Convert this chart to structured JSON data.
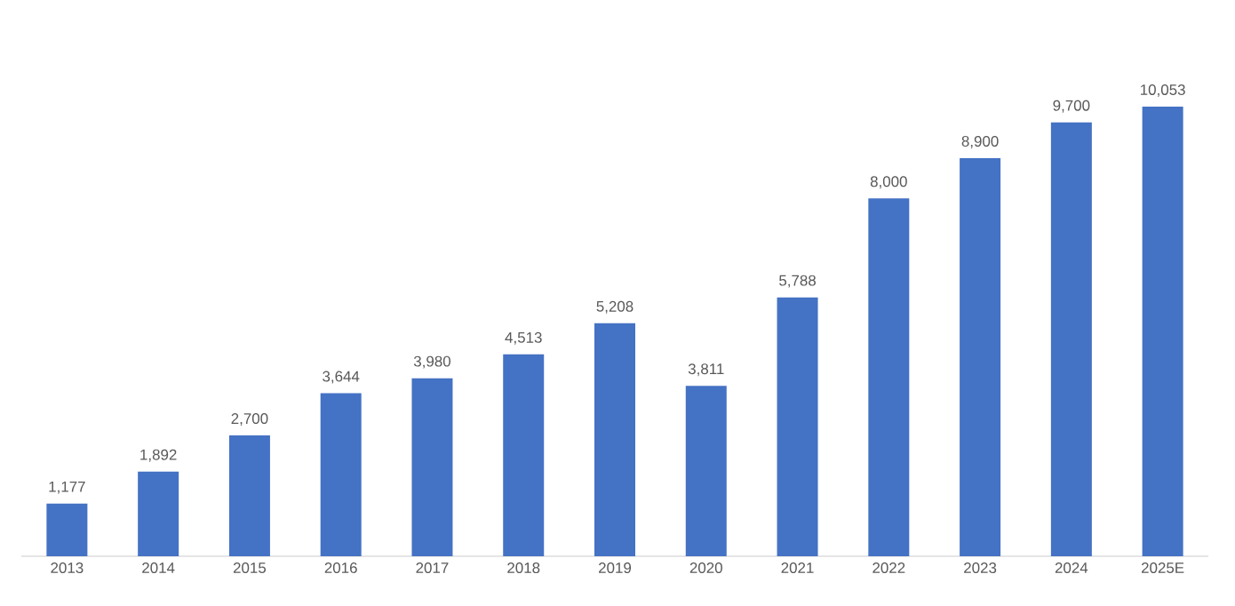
{
  "chart_data": {
    "type": "bar",
    "categories": [
      "2013",
      "2014",
      "2015",
      "2016",
      "2017",
      "2018",
      "2019",
      "2020",
      "2021",
      "2022",
      "2023",
      "2024",
      "2025E"
    ],
    "values": [
      1177,
      1892,
      2700,
      3644,
      3980,
      4513,
      5208,
      3811,
      5788,
      8000,
      8900,
      9700,
      10053
    ],
    "value_labels": [
      "1,177",
      "1,892",
      "2,700",
      "3,644",
      "3,980",
      "4,513",
      "5,208",
      "3,811",
      "5,788",
      "8,000",
      "8,900",
      "9,700",
      "10,053"
    ],
    "color": "#4472c4"
  }
}
